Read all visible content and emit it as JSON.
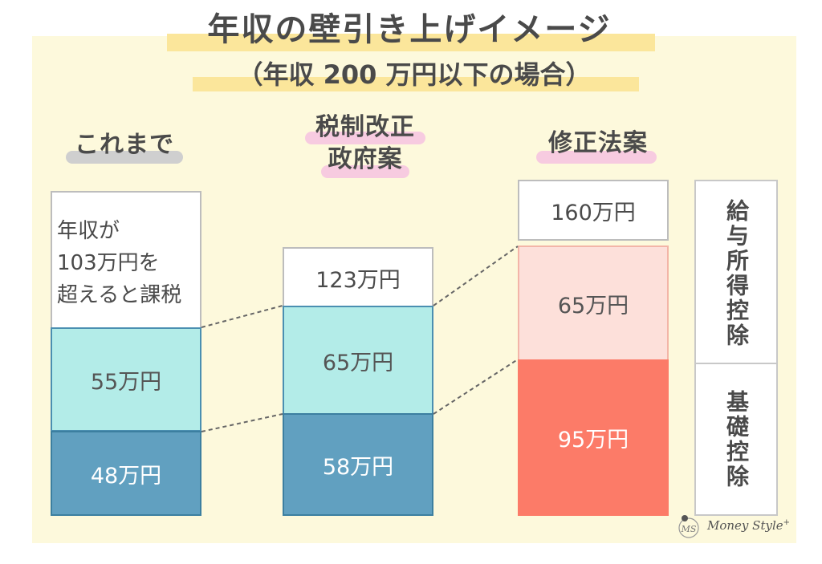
{
  "title": "年収の壁引き上げイメージ",
  "subtitle": "（年収 200 万円以下の場合）",
  "columns": {
    "current": {
      "heading": "これまで",
      "note_lines": [
        "年収が",
        "103万円を",
        "超えると課税"
      ],
      "employment_deduction": "55万円",
      "basic_deduction": "48万円"
    },
    "government": {
      "heading_line1": "税制改正",
      "heading_line2": "政府案",
      "total": "123万円",
      "employment_deduction": "65万円",
      "basic_deduction": "58万円"
    },
    "amendment": {
      "heading": "修正法案",
      "total": "160万円",
      "employment_deduction": "65万円",
      "basic_deduction": "95万円"
    }
  },
  "legend": {
    "employment_deduction": "給与所得控除",
    "basic_deduction": "基礎控除"
  },
  "logo": {
    "text": "Money Style",
    "sup": "+",
    "mark": "MS"
  },
  "colors": {
    "panel": "#fdf9dc",
    "highlight_yellow": "#fbe69b",
    "employment_cyan": "#b3ece8",
    "basic_blue": "#61a0c0",
    "employment_pink": "#fde0da",
    "basic_coral": "#fc7b68"
  }
}
